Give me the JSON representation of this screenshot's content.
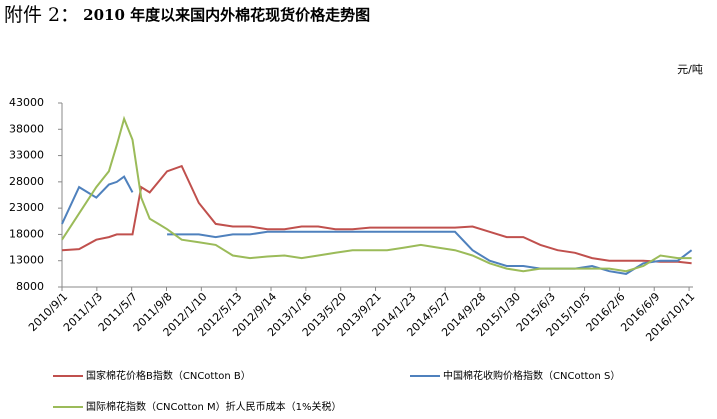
{
  "chart_data": {
    "type": "line",
    "title_label": "附件 2：",
    "title": "2010 年度以来国内外棉花现货价格走势图",
    "y_unit": "元/吨",
    "x": [
      "2010/9/1",
      "2010/11/1",
      "2011/1/1",
      "2011/2/15",
      "2011/3/15",
      "2011/4/10",
      "2011/5/10",
      "2011/6/10",
      "2011/7/10",
      "2011/8/10",
      "2011/9/10",
      "2011/11/1",
      "2012/1/1",
      "2012/3/1",
      "2012/5/1",
      "2012/7/1",
      "2012/9/1",
      "2012/11/1",
      "2013/1/1",
      "2013/3/1",
      "2013/5/1",
      "2013/7/1",
      "2013/9/1",
      "2013/11/1",
      "2014/1/1",
      "2014/3/1",
      "2014/5/1",
      "2014/7/1",
      "2014/9/1",
      "2014/11/1",
      "2015/1/1",
      "2015/3/1",
      "2015/5/1",
      "2015/7/1",
      "2015/9/1",
      "2015/11/1",
      "2016/1/1",
      "2016/3/1",
      "2016/5/1",
      "2016/7/1",
      "2016/9/1",
      "2016/10/20"
    ],
    "series": [
      {
        "name": "国家棉花价格B指数（CNCotton B）",
        "color": "#c0504d",
        "values": [
          15000,
          15200,
          17000,
          17500,
          18000,
          18000,
          18000,
          27000,
          26000,
          28000,
          30000,
          31000,
          24000,
          20000,
          19500,
          19500,
          19000,
          19000,
          19500,
          19500,
          19000,
          19000,
          19300,
          19300,
          19300,
          19300,
          19300,
          19300,
          19500,
          18500,
          17500,
          17500,
          16000,
          15000,
          14500,
          13500,
          13000,
          13000,
          13000,
          12800,
          12800,
          12500
        ]
      },
      {
        "name": "中国棉花收购价格指数（CNCotton S）",
        "color": "#4f81bd",
        "values": [
          20000,
          27000,
          25000,
          27500,
          28000,
          29000,
          26000,
          null,
          null,
          null,
          18000,
          18000,
          18000,
          17500,
          18000,
          18000,
          18500,
          18500,
          18500,
          18500,
          18500,
          18500,
          18500,
          18500,
          18500,
          18500,
          18500,
          18500,
          15000,
          13000,
          12000,
          12000,
          11500,
          11500,
          11500,
          12000,
          11000,
          10500,
          12500,
          13000,
          13000,
          15000
        ]
      },
      {
        "name": "国际棉花指数（CNCotton M）折人民币成本（1%关税）",
        "color": "#9bbb59",
        "values": [
          17000,
          22000,
          27000,
          30000,
          35000,
          40000,
          36000,
          25000,
          21000,
          20000,
          19000,
          17000,
          16500,
          16000,
          14000,
          13500,
          13800,
          14000,
          13500,
          14000,
          14500,
          15000,
          15000,
          15000,
          15500,
          16000,
          15500,
          15000,
          14000,
          12500,
          11500,
          11000,
          11500,
          11500,
          11500,
          11500,
          11500,
          11000,
          12000,
          14000,
          13500,
          13500
        ]
      }
    ],
    "xlim": [
      "2010/9/1",
      "2016/10/25"
    ],
    "xticks": [
      "2010/9/1",
      "2011/1/3",
      "2011/5/7",
      "2011/9/8",
      "2012/1/10",
      "2012/5/13",
      "2012/9/14",
      "2013/1/16",
      "2013/5/20",
      "2013/9/21",
      "2014/1/23",
      "2014/5/27",
      "2014/9/28",
      "2015/1/30",
      "2015/6/3",
      "2015/10/5",
      "2016/2/6",
      "2016/6/9",
      "2016/10/11"
    ],
    "ylim": [
      8000,
      43000
    ],
    "yticks": [
      8000,
      13000,
      18000,
      23000,
      28000,
      33000,
      38000,
      43000
    ],
    "grid": false,
    "legend": "bottom"
  }
}
